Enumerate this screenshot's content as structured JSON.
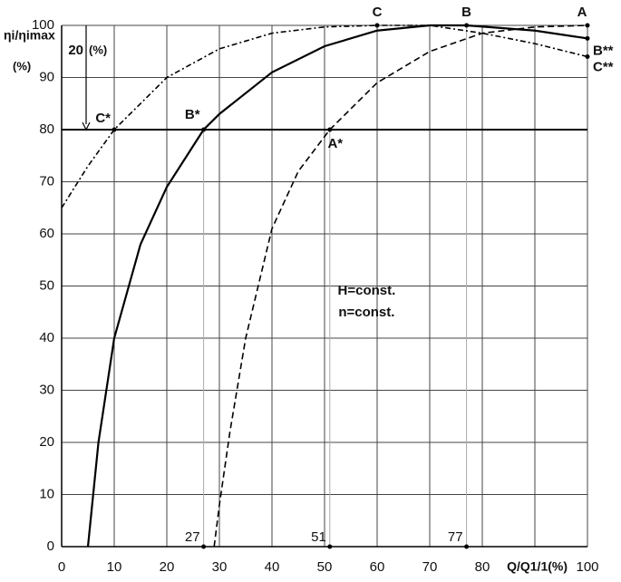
{
  "chart_data": {
    "type": "line",
    "ylabel": "ηi/ηimax",
    "ylabel_unit": "(%)",
    "xlabel": "Q/Q1/1(%)",
    "xlim": [
      0,
      100
    ],
    "ylim": [
      0,
      100
    ],
    "xticks": [
      0,
      10,
      20,
      30,
      40,
      50,
      60,
      70,
      80,
      90,
      100
    ],
    "yticks": [
      0,
      10,
      20,
      30,
      40,
      50,
      60,
      70,
      80,
      90,
      100
    ],
    "grid": true,
    "series": [
      {
        "color": "#000000",
        "dash": "solid",
        "x": [
          5,
          7,
          10,
          15,
          20,
          27,
          30,
          40,
          50,
          60,
          70,
          77,
          90,
          100
        ],
        "values": [
          0,
          20,
          40,
          58,
          69,
          80,
          83,
          91,
          96,
          99,
          100,
          100,
          99,
          97.5
        ]
      },
      {
        "color": "#000000",
        "dash": "dashed",
        "x": [
          29,
          30,
          32,
          35,
          40,
          45,
          51,
          60,
          70,
          80,
          90,
          100
        ],
        "values": [
          0,
          8,
          22,
          40,
          61,
          72,
          80,
          89,
          95,
          98.5,
          99.7,
          100
        ]
      },
      {
        "color": "#000000",
        "dash": "dashdot",
        "x": [
          0,
          5,
          10,
          20,
          30,
          40,
          50,
          60,
          70,
          80,
          90,
          100
        ],
        "values": [
          65,
          73,
          80,
          90,
          95.5,
          98.5,
          99.7,
          100,
          100,
          98.5,
          96.5,
          94
        ]
      }
    ],
    "reference_line": 80,
    "drop_lines": [
      {
        "x": 27,
        "label": "27"
      },
      {
        "x": 51,
        "label": "51"
      },
      {
        "x": 77,
        "label": "77"
      }
    ],
    "points": [
      {
        "text": "A",
        "x": 100,
        "y": 100
      },
      {
        "text": "B",
        "x": 77,
        "y": 100
      },
      {
        "text": "C",
        "x": 60,
        "y": 100
      },
      {
        "text": "A*",
        "x": 51,
        "y": 80
      },
      {
        "text": "B*",
        "x": 27,
        "y": 80
      },
      {
        "text": "C*",
        "x": 10,
        "y": 80
      },
      {
        "text": "B**",
        "x": 100,
        "y": 97.5
      },
      {
        "text": "C**",
        "x": 100,
        "y": 94
      }
    ],
    "drop_annotation": {
      "text": "20",
      "unit": "(%)"
    },
    "notes": [
      "H=const.",
      "n=const."
    ]
  }
}
